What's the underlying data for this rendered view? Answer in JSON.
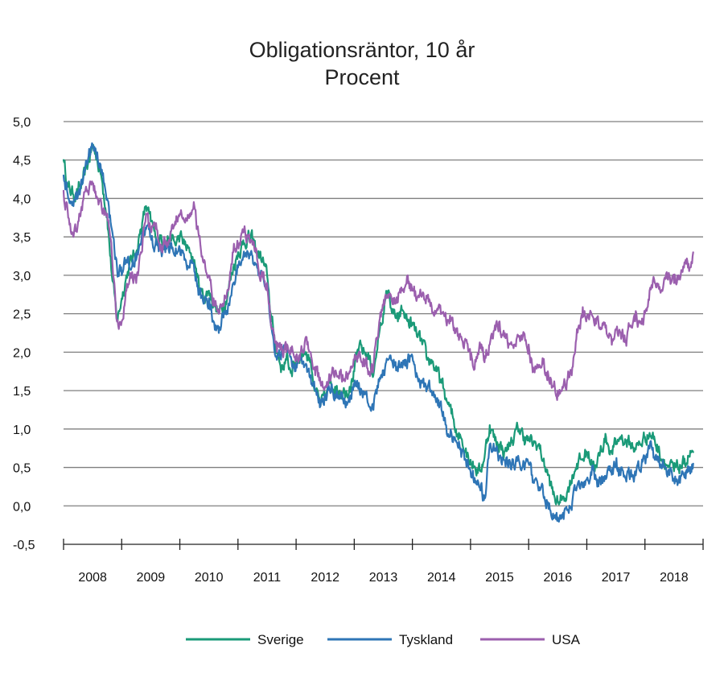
{
  "chart_data": {
    "type": "line",
    "title": "Obligationsräntor, 10 år",
    "subtitle": "Procent",
    "xlabel": "",
    "ylabel": "",
    "ylim": [
      -0.5,
      5.0
    ],
    "xlim": [
      2008.0,
      2019.0
    ],
    "grid": true,
    "legend": "bottom",
    "y_ticks": [
      "5,0",
      "4,5",
      "4,0",
      "3,5",
      "3,0",
      "2,5",
      "2,0",
      "1,5",
      "1,0",
      "0,5",
      "0,0",
      "-0,5"
    ],
    "x_ticks": [
      "2008",
      "2009",
      "2010",
      "2011",
      "2012",
      "2013",
      "2014",
      "2015",
      "2016",
      "2017",
      "2018"
    ],
    "series": [
      {
        "name": "Sverige",
        "color": "#1a9a78",
        "x": [
          2008.0,
          2008.08,
          2008.17,
          2008.25,
          2008.33,
          2008.42,
          2008.5,
          2008.58,
          2008.67,
          2008.75,
          2008.83,
          2008.92,
          2009.0,
          2009.08,
          2009.17,
          2009.25,
          2009.33,
          2009.42,
          2009.5,
          2009.58,
          2009.67,
          2009.75,
          2009.83,
          2009.92,
          2010.0,
          2010.08,
          2010.17,
          2010.25,
          2010.33,
          2010.42,
          2010.5,
          2010.58,
          2010.67,
          2010.75,
          2010.83,
          2010.92,
          2011.0,
          2011.08,
          2011.17,
          2011.25,
          2011.33,
          2011.42,
          2011.5,
          2011.58,
          2011.67,
          2011.75,
          2011.83,
          2011.92,
          2012.0,
          2012.08,
          2012.17,
          2012.25,
          2012.33,
          2012.42,
          2012.5,
          2012.58,
          2012.67,
          2012.75,
          2012.83,
          2012.92,
          2013.0,
          2013.08,
          2013.17,
          2013.25,
          2013.33,
          2013.42,
          2013.5,
          2013.58,
          2013.67,
          2013.75,
          2013.83,
          2013.92,
          2014.0,
          2014.08,
          2014.17,
          2014.25,
          2014.33,
          2014.42,
          2014.5,
          2014.58,
          2014.67,
          2014.75,
          2014.83,
          2014.92,
          2015.0,
          2015.08,
          2015.17,
          2015.25,
          2015.33,
          2015.42,
          2015.5,
          2015.58,
          2015.67,
          2015.75,
          2015.83,
          2015.92,
          2016.0,
          2016.08,
          2016.17,
          2016.25,
          2016.33,
          2016.42,
          2016.5,
          2016.58,
          2016.67,
          2016.75,
          2016.83,
          2016.92,
          2017.0,
          2017.08,
          2017.17,
          2017.25,
          2017.33,
          2017.42,
          2017.5,
          2017.58,
          2017.67,
          2017.75,
          2017.83,
          2017.92,
          2018.0,
          2018.08,
          2018.17,
          2018.25,
          2018.33,
          2018.42,
          2018.5,
          2018.58,
          2018.67,
          2018.75,
          2018.83
        ],
        "values": [
          4.5,
          4.15,
          4.05,
          4.1,
          4.2,
          4.45,
          4.7,
          4.5,
          4.2,
          3.8,
          3.0,
          2.4,
          2.7,
          3.0,
          3.2,
          3.3,
          3.6,
          3.9,
          3.7,
          3.5,
          3.5,
          3.45,
          3.5,
          3.4,
          3.5,
          3.4,
          3.3,
          3.2,
          2.85,
          2.7,
          2.8,
          2.65,
          2.5,
          2.6,
          2.8,
          3.1,
          3.3,
          3.4,
          3.5,
          3.45,
          3.3,
          3.2,
          3.0,
          2.4,
          2.0,
          1.8,
          1.9,
          1.75,
          1.9,
          2.0,
          2.0,
          1.9,
          1.5,
          1.3,
          1.4,
          1.6,
          1.55,
          1.5,
          1.5,
          1.55,
          1.75,
          2.05,
          2.0,
          1.95,
          1.7,
          2.2,
          2.5,
          2.8,
          2.5,
          2.4,
          2.55,
          2.4,
          2.35,
          2.2,
          2.1,
          1.9,
          1.9,
          1.75,
          1.6,
          1.4,
          1.2,
          1.0,
          0.9,
          0.75,
          0.6,
          0.5,
          0.45,
          0.7,
          1.05,
          0.85,
          0.8,
          0.7,
          0.8,
          0.9,
          1.0,
          0.9,
          0.85,
          0.8,
          0.8,
          0.6,
          0.4,
          0.15,
          0.05,
          0.1,
          0.2,
          0.4,
          0.55,
          0.6,
          0.7,
          0.6,
          0.5,
          0.75,
          0.9,
          0.7,
          0.8,
          0.9,
          0.85,
          0.8,
          0.75,
          0.8,
          0.9,
          0.95,
          0.85,
          0.7,
          0.6,
          0.5,
          0.45,
          0.5,
          0.55,
          0.65,
          0.7
        ]
      },
      {
        "name": "Tyskland",
        "color": "#2e75b6",
        "x": [
          2008.0,
          2008.08,
          2008.17,
          2008.25,
          2008.33,
          2008.42,
          2008.5,
          2008.58,
          2008.67,
          2008.75,
          2008.83,
          2008.92,
          2009.0,
          2009.08,
          2009.17,
          2009.25,
          2009.33,
          2009.42,
          2009.5,
          2009.58,
          2009.67,
          2009.75,
          2009.83,
          2009.92,
          2010.0,
          2010.08,
          2010.17,
          2010.25,
          2010.33,
          2010.42,
          2010.5,
          2010.58,
          2010.67,
          2010.75,
          2010.83,
          2010.92,
          2011.0,
          2011.08,
          2011.17,
          2011.25,
          2011.33,
          2011.42,
          2011.5,
          2011.58,
          2011.67,
          2011.75,
          2011.83,
          2011.92,
          2012.0,
          2012.08,
          2012.17,
          2012.25,
          2012.33,
          2012.42,
          2012.5,
          2012.58,
          2012.67,
          2012.75,
          2012.83,
          2012.92,
          2013.0,
          2013.08,
          2013.17,
          2013.25,
          2013.33,
          2013.42,
          2013.5,
          2013.58,
          2013.67,
          2013.75,
          2013.83,
          2013.92,
          2014.0,
          2014.08,
          2014.17,
          2014.25,
          2014.33,
          2014.42,
          2014.5,
          2014.58,
          2014.67,
          2014.75,
          2014.83,
          2014.92,
          2015.0,
          2015.08,
          2015.17,
          2015.25,
          2015.33,
          2015.42,
          2015.5,
          2015.58,
          2015.67,
          2015.75,
          2015.83,
          2015.92,
          2016.0,
          2016.08,
          2016.17,
          2016.25,
          2016.33,
          2016.42,
          2016.5,
          2016.58,
          2016.67,
          2016.75,
          2016.83,
          2016.92,
          2017.0,
          2017.08,
          2017.17,
          2017.25,
          2017.33,
          2017.42,
          2017.5,
          2017.58,
          2017.67,
          2017.75,
          2017.83,
          2017.92,
          2018.0,
          2018.08,
          2018.17,
          2018.25,
          2018.33,
          2018.42,
          2018.5,
          2018.58,
          2018.67,
          2018.75,
          2018.83
        ],
        "values": [
          4.3,
          4.0,
          3.9,
          4.05,
          4.2,
          4.5,
          4.7,
          4.6,
          4.3,
          4.0,
          3.6,
          3.1,
          3.0,
          3.2,
          3.1,
          3.2,
          3.4,
          3.6,
          3.5,
          3.4,
          3.35,
          3.3,
          3.35,
          3.25,
          3.35,
          3.2,
          3.1,
          3.05,
          2.75,
          2.65,
          2.7,
          2.4,
          2.25,
          2.45,
          2.6,
          2.9,
          3.1,
          3.2,
          3.3,
          3.25,
          3.1,
          3.0,
          2.9,
          2.3,
          1.9,
          2.0,
          2.05,
          1.9,
          1.85,
          1.9,
          1.85,
          1.7,
          1.5,
          1.3,
          1.45,
          1.5,
          1.45,
          1.4,
          1.4,
          1.35,
          1.55,
          1.6,
          1.45,
          1.3,
          1.25,
          1.65,
          1.7,
          1.9,
          1.8,
          1.75,
          1.8,
          1.9,
          1.95,
          1.7,
          1.6,
          1.55,
          1.5,
          1.4,
          1.25,
          1.05,
          0.95,
          0.85,
          0.75,
          0.6,
          0.45,
          0.3,
          0.2,
          0.1,
          0.8,
          0.75,
          0.65,
          0.6,
          0.6,
          0.5,
          0.6,
          0.55,
          0.55,
          0.3,
          0.2,
          0.15,
          0.05,
          -0.1,
          -0.15,
          -0.15,
          -0.05,
          0.05,
          0.25,
          0.3,
          0.35,
          0.4,
          0.35,
          0.3,
          0.35,
          0.45,
          0.5,
          0.4,
          0.35,
          0.4,
          0.45,
          0.45,
          0.6,
          0.75,
          0.6,
          0.55,
          0.5,
          0.4,
          0.35,
          0.3,
          0.4,
          0.45,
          0.55
        ]
      },
      {
        "name": "USA",
        "color": "#9b5fae",
        "x": [
          2008.0,
          2008.08,
          2008.17,
          2008.25,
          2008.33,
          2008.42,
          2008.5,
          2008.58,
          2008.67,
          2008.75,
          2008.83,
          2008.92,
          2009.0,
          2009.08,
          2009.17,
          2009.25,
          2009.33,
          2009.42,
          2009.5,
          2009.58,
          2009.67,
          2009.75,
          2009.83,
          2009.92,
          2010.0,
          2010.08,
          2010.17,
          2010.25,
          2010.33,
          2010.42,
          2010.5,
          2010.58,
          2010.67,
          2010.75,
          2010.83,
          2010.92,
          2011.0,
          2011.08,
          2011.17,
          2011.25,
          2011.33,
          2011.42,
          2011.5,
          2011.58,
          2011.67,
          2011.75,
          2011.83,
          2011.92,
          2012.0,
          2012.08,
          2012.17,
          2012.25,
          2012.33,
          2012.42,
          2012.5,
          2012.58,
          2012.67,
          2012.75,
          2012.83,
          2012.92,
          2013.0,
          2013.08,
          2013.17,
          2013.25,
          2013.33,
          2013.42,
          2013.5,
          2013.58,
          2013.67,
          2013.75,
          2013.83,
          2013.92,
          2014.0,
          2014.08,
          2014.17,
          2014.25,
          2014.33,
          2014.42,
          2014.5,
          2014.58,
          2014.67,
          2014.75,
          2014.83,
          2014.92,
          2015.0,
          2015.08,
          2015.17,
          2015.25,
          2015.33,
          2015.42,
          2015.5,
          2015.58,
          2015.67,
          2015.75,
          2015.83,
          2015.92,
          2016.0,
          2016.08,
          2016.17,
          2016.25,
          2016.33,
          2016.42,
          2016.5,
          2016.58,
          2016.67,
          2016.75,
          2016.83,
          2016.92,
          2017.0,
          2017.08,
          2017.17,
          2017.25,
          2017.33,
          2017.42,
          2017.5,
          2017.58,
          2017.67,
          2017.75,
          2017.83,
          2017.92,
          2018.0,
          2018.08,
          2018.17,
          2018.25,
          2018.33,
          2018.42,
          2018.5,
          2018.58,
          2018.67,
          2018.75,
          2018.83
        ],
        "values": [
          4.1,
          3.75,
          3.5,
          3.7,
          3.95,
          4.1,
          4.2,
          4.0,
          3.8,
          3.8,
          3.3,
          2.4,
          2.4,
          2.8,
          3.0,
          2.9,
          3.3,
          3.8,
          3.6,
          3.6,
          3.4,
          3.4,
          3.45,
          3.7,
          3.8,
          3.7,
          3.8,
          3.9,
          3.5,
          3.2,
          3.0,
          2.7,
          2.5,
          2.6,
          2.8,
          3.3,
          3.4,
          3.6,
          3.5,
          3.4,
          3.2,
          3.0,
          2.9,
          2.3,
          2.0,
          2.1,
          2.0,
          2.0,
          1.95,
          2.0,
          2.2,
          2.0,
          1.7,
          1.6,
          1.55,
          1.7,
          1.75,
          1.75,
          1.65,
          1.75,
          1.9,
          2.0,
          1.9,
          1.75,
          1.8,
          2.3,
          2.6,
          2.75,
          2.7,
          2.65,
          2.8,
          3.0,
          2.8,
          2.7,
          2.75,
          2.7,
          2.6,
          2.55,
          2.5,
          2.4,
          2.45,
          2.3,
          2.2,
          2.15,
          1.9,
          1.9,
          2.05,
          1.95,
          2.1,
          2.35,
          2.4,
          2.2,
          2.1,
          2.1,
          2.2,
          2.25,
          2.1,
          1.8,
          1.8,
          1.85,
          1.75,
          1.55,
          1.5,
          1.55,
          1.65,
          1.8,
          2.3,
          2.45,
          2.45,
          2.5,
          2.45,
          2.3,
          2.35,
          2.2,
          2.3,
          2.25,
          2.15,
          2.35,
          2.4,
          2.4,
          2.5,
          2.8,
          2.9,
          2.85,
          2.95,
          3.0,
          2.9,
          3.0,
          3.1,
          3.15,
          3.3
        ]
      }
    ]
  }
}
